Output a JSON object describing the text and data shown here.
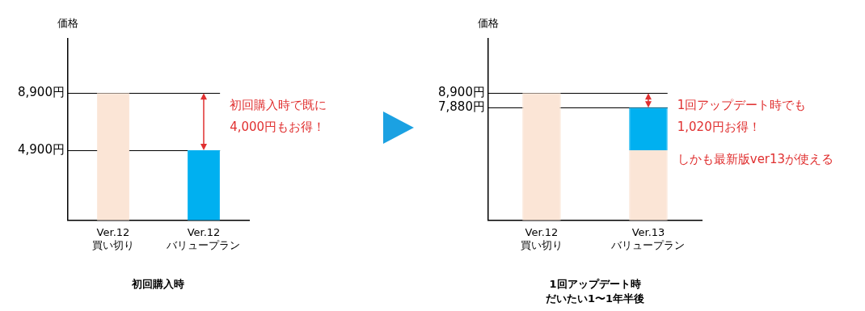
{
  "chart_data": [
    {
      "type": "bar",
      "title": "初回購入時",
      "ylabel": "価格",
      "categories": [
        "Ver.12\n買い切り",
        "Ver.12\nバリュープラン"
      ],
      "values": [
        8900,
        4900
      ],
      "colors": [
        "#fbe5d6",
        "#00b0f0"
      ],
      "ylim": [
        0,
        12700
      ],
      "yticks": [
        {
          "value": 8900,
          "label": "8,900円"
        },
        {
          "value": 4900,
          "label": "4,900円"
        }
      ],
      "grid": false,
      "legend": false,
      "ref_lines": [
        {
          "axis": "y",
          "value": 8900
        },
        {
          "axis": "y",
          "value": 4900
        }
      ],
      "annotations": [
        "初回購入時で既に\n4,000円もお得！"
      ]
    },
    {
      "type": "bar",
      "title": "1回アップデート時",
      "subtitle": "だいたい1〜1年半後",
      "ylabel": "価格",
      "categories": [
        "Ver.12\n買い切り",
        "Ver.13\nバリュープラン"
      ],
      "stacked": true,
      "series": [
        {
          "color": "#fbe5d6",
          "values": [
            8900,
            4900
          ]
        },
        {
          "color": "#00b0f0",
          "values": [
            null,
            2980
          ]
        }
      ],
      "ylim": [
        0,
        12700
      ],
      "yticks": [
        {
          "value": 8900,
          "label": "8,900円"
        },
        {
          "value": 7880,
          "label": "7,880円"
        }
      ],
      "grid": false,
      "legend": false,
      "ref_lines": [
        {
          "axis": "y",
          "value": 8900
        },
        {
          "axis": "y",
          "value": 7880
        }
      ],
      "annotations": [
        "1回アップデート時でも\n1,020円お得！",
        "しかも最新版ver13が使える"
      ]
    }
  ]
}
